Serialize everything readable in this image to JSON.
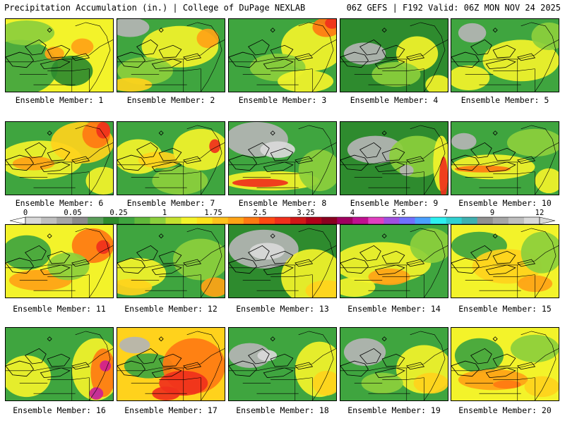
{
  "header": {
    "title": "Precipitation Accumulation (in.) | College of DuPage NEXLAB",
    "run_info": "06Z GEFS | F192 Valid: 06Z MON NOV 24 2025"
  },
  "colors": {
    "none": "#ffffff",
    "lightgray": "#d9d9d9",
    "gray": "#b4b4b4",
    "darkgray": "#8f8f8f",
    "darkgreen": "#2e8b2e",
    "green": "#3fa53f",
    "lightgreen": "#8ccf3c",
    "yellowgreen": "#c5e22e",
    "yellow": "#f3f32a",
    "gold": "#ffd21c",
    "orange": "#ffa316",
    "darkorange": "#ff7a12",
    "red": "#f0301c",
    "crimson": "#c0001a",
    "magenta": "#d02090",
    "violet": "#a050e0",
    "cyan": "#2cf0f0",
    "water": "#f3f32a"
  },
  "colorbar": {
    "labels": [
      "0",
      "0.05",
      "0.25",
      "1",
      "1.75",
      "2.5",
      "3.25",
      "4",
      "5.5",
      "7",
      "9",
      "12"
    ],
    "swatches": [
      "#d9d9d9",
      "#bfbfbf",
      "#a6a6a6",
      "#8c8c8c",
      "#5a9e5a",
      "#2e8b2e",
      "#3fa53f",
      "#60b83a",
      "#8ccf3c",
      "#c5e22e",
      "#f3f32a",
      "#ffe21c",
      "#ffc21c",
      "#ffa316",
      "#ff7a12",
      "#ff4a12",
      "#f0301c",
      "#d01818",
      "#b0001a",
      "#8a0020",
      "#a00060",
      "#c01090",
      "#e040c0",
      "#a050e0",
      "#7070ff",
      "#4aa0ff",
      "#2cf0f0",
      "#30d0d0",
      "#40b0b0",
      "#909090",
      "#a6a6a6",
      "#bfbfbf",
      "#d9d9d9"
    ]
  },
  "members": [
    {
      "label": "Ensemble Member: 1",
      "base": "#f3f32a",
      "blobs": [
        {
          "c": "#3fa53f",
          "p": [
            20,
            70,
            55,
            40
          ]
        },
        {
          "c": "#2e8b2e",
          "p": [
            95,
            75,
            30,
            22
          ]
        },
        {
          "c": "#ffa316",
          "p": [
            110,
            40,
            16,
            12
          ]
        },
        {
          "c": "#ffa316",
          "p": [
            70,
            50,
            14,
            10
          ]
        },
        {
          "c": "#8ccf3c",
          "p": [
            30,
            20,
            40,
            18
          ]
        }
      ]
    },
    {
      "label": "Ensemble Member: 2",
      "base": "#3fa53f",
      "blobs": [
        {
          "c": "#b4b4b4",
          "p": [
            18,
            12,
            28,
            14
          ]
        },
        {
          "c": "#f3f32a",
          "p": [
            90,
            40,
            55,
            30
          ]
        },
        {
          "c": "#ffa316",
          "p": [
            130,
            28,
            16,
            14
          ]
        },
        {
          "c": "#8ccf3c",
          "p": [
            40,
            75,
            40,
            20
          ]
        },
        {
          "c": "#ffd21c",
          "p": [
            20,
            95,
            30,
            10
          ]
        }
      ]
    },
    {
      "label": "Ensemble Member: 3",
      "base": "#3fa53f",
      "blobs": [
        {
          "c": "#f3f32a",
          "p": [
            120,
            40,
            45,
            35
          ]
        },
        {
          "c": "#ff7a12",
          "p": [
            140,
            12,
            20,
            14
          ]
        },
        {
          "c": "#f0301c",
          "p": [
            148,
            6,
            10,
            8
          ]
        },
        {
          "c": "#8ccf3c",
          "p": [
            70,
            70,
            40,
            20
          ]
        },
        {
          "c": "#f3f32a",
          "p": [
            110,
            90,
            40,
            16
          ]
        }
      ]
    },
    {
      "label": "Ensemble Member: 4",
      "base": "#2e8b2e",
      "blobs": [
        {
          "c": "#b4b4b4",
          "p": [
            35,
            50,
            30,
            16
          ]
        },
        {
          "c": "#f3f32a",
          "p": [
            110,
            50,
            30,
            25
          ]
        },
        {
          "c": "#f3f32a",
          "p": [
            140,
            95,
            18,
            14
          ]
        },
        {
          "c": "#8ccf3c",
          "p": [
            80,
            80,
            35,
            18
          ]
        }
      ]
    },
    {
      "label": "Ensemble Member: 5",
      "base": "#3fa53f",
      "blobs": [
        {
          "c": "#b4b4b4",
          "p": [
            30,
            20,
            20,
            14
          ]
        },
        {
          "c": "#f3f32a",
          "p": [
            100,
            60,
            55,
            30
          ]
        },
        {
          "c": "#f3f32a",
          "p": [
            25,
            85,
            30,
            18
          ]
        },
        {
          "c": "#8ccf3c",
          "p": [
            140,
            25,
            25,
            20
          ]
        }
      ]
    },
    {
      "label": "Ensemble Member: 6",
      "base": "#3fa53f",
      "blobs": [
        {
          "c": "#f3f32a",
          "p": [
            50,
            55,
            60,
            28
          ]
        },
        {
          "c": "#ffd21c",
          "p": [
            110,
            30,
            45,
            30
          ]
        },
        {
          "c": "#ff7a12",
          "p": [
            130,
            18,
            20,
            20
          ]
        },
        {
          "c": "#f0301c",
          "p": [
            140,
            12,
            10,
            12
          ]
        },
        {
          "c": "#ffa316",
          "p": [
            40,
            60,
            30,
            10
          ]
        },
        {
          "c": "#f3f32a",
          "p": [
            140,
            85,
            25,
            20
          ]
        }
      ]
    },
    {
      "label": "Ensemble Member: 7",
      "base": "#3fa53f",
      "blobs": [
        {
          "c": "#f3f32a",
          "p": [
            30,
            50,
            35,
            25
          ]
        },
        {
          "c": "#ffd21c",
          "p": [
            60,
            55,
            30,
            12
          ]
        },
        {
          "c": "#f3f32a",
          "p": [
            120,
            40,
            40,
            30
          ]
        },
        {
          "c": "#f0301c",
          "p": [
            140,
            35,
            8,
            10
          ]
        },
        {
          "c": "#8ccf3c",
          "p": [
            90,
            85,
            40,
            20
          ]
        }
      ]
    },
    {
      "label": "Ensemble Member: 8",
      "base": "#3fa53f",
      "blobs": [
        {
          "c": "#b4b4b4",
          "p": [
            40,
            25,
            45,
            25
          ]
        },
        {
          "c": "#d9d9d9",
          "p": [
            70,
            40,
            25,
            12
          ]
        },
        {
          "c": "#f3f32a",
          "p": [
            60,
            85,
            70,
            14
          ]
        },
        {
          "c": "#f0301c",
          "p": [
            45,
            88,
            40,
            6
          ]
        },
        {
          "c": "#8ccf3c",
          "p": [
            130,
            70,
            30,
            30
          ]
        }
      ]
    },
    {
      "label": "Ensemble Member: 9",
      "base": "#2e8b2e",
      "blobs": [
        {
          "c": "#b4b4b4",
          "p": [
            50,
            40,
            40,
            20
          ]
        },
        {
          "c": "#8ccf3c",
          "p": [
            110,
            50,
            40,
            30
          ]
        },
        {
          "c": "#f3f32a",
          "p": [
            145,
            60,
            12,
            40
          ]
        },
        {
          "c": "#f0301c",
          "p": [
            148,
            80,
            6,
            30
          ]
        },
        {
          "c": "#b4b4b4",
          "p": [
            95,
            70,
            10,
            8
          ]
        }
      ]
    },
    {
      "label": "Ensemble Member: 10",
      "base": "#3fa53f",
      "blobs": [
        {
          "c": "#b4b4b4",
          "p": [
            18,
            28,
            18,
            12
          ]
        },
        {
          "c": "#f3f32a",
          "p": [
            60,
            65,
            60,
            18
          ]
        },
        {
          "c": "#ff7a12",
          "p": [
            45,
            68,
            40,
            5
          ]
        },
        {
          "c": "#8ccf3c",
          "p": [
            120,
            30,
            40,
            20
          ]
        },
        {
          "c": "#f3f32a",
          "p": [
            140,
            85,
            20,
            18
          ]
        }
      ]
    },
    {
      "label": "Ensemble Member: 11",
      "base": "#f3f32a",
      "blobs": [
        {
          "c": "#3fa53f",
          "p": [
            30,
            40,
            35,
            25
          ]
        },
        {
          "c": "#ff7a12",
          "p": [
            125,
            30,
            30,
            25
          ]
        },
        {
          "c": "#f0301c",
          "p": [
            140,
            32,
            10,
            10
          ]
        },
        {
          "c": "#ffa316",
          "p": [
            50,
            80,
            45,
            15
          ]
        },
        {
          "c": "#8ccf3c",
          "p": [
            90,
            60,
            30,
            20
          ]
        }
      ]
    },
    {
      "label": "Ensemble Member: 12",
      "base": "#3fa53f",
      "blobs": [
        {
          "c": "#f3f32a",
          "p": [
            30,
            70,
            40,
            22
          ]
        },
        {
          "c": "#ffd21c",
          "p": [
            20,
            90,
            30,
            12
          ]
        },
        {
          "c": "#8ccf3c",
          "p": [
            120,
            50,
            40,
            30
          ]
        },
        {
          "c": "#ffa316",
          "p": [
            140,
            90,
            20,
            14
          ]
        }
      ]
    },
    {
      "label": "Ensemble Member: 13",
      "base": "#2e8b2e",
      "blobs": [
        {
          "c": "#b4b4b4",
          "p": [
            50,
            35,
            50,
            28
          ]
        },
        {
          "c": "#d9d9d9",
          "p": [
            55,
            38,
            25,
            12
          ]
        },
        {
          "c": "#f3f32a",
          "p": [
            120,
            75,
            45,
            40
          ]
        },
        {
          "c": "#ffd21c",
          "p": [
            140,
            95,
            30,
            15
          ]
        }
      ]
    },
    {
      "label": "Ensemble Member: 14",
      "base": "#3fa53f",
      "blobs": [
        {
          "c": "#f3f32a",
          "p": [
            60,
            55,
            70,
            30
          ]
        },
        {
          "c": "#ffa316",
          "p": [
            70,
            75,
            30,
            12
          ]
        },
        {
          "c": "#8ccf3c",
          "p": [
            130,
            30,
            30,
            25
          ]
        },
        {
          "c": "#f3f32a",
          "p": [
            20,
            90,
            30,
            14
          ]
        }
      ]
    },
    {
      "label": "Ensemble Member: 15",
      "base": "#f3f32a",
      "blobs": [
        {
          "c": "#3fa53f",
          "p": [
            40,
            30,
            40,
            20
          ]
        },
        {
          "c": "#ffd21c",
          "p": [
            80,
            60,
            50,
            25
          ]
        },
        {
          "c": "#8ccf3c",
          "p": [
            130,
            40,
            30,
            30
          ]
        },
        {
          "c": "#ffa316",
          "p": [
            120,
            85,
            25,
            12
          ]
        }
      ]
    },
    {
      "label": "Ensemble Member: 16",
      "base": "#3fa53f",
      "blobs": [
        {
          "c": "#f3f32a",
          "p": [
            30,
            70,
            35,
            30
          ]
        },
        {
          "c": "#f3f32a",
          "p": [
            130,
            60,
            35,
            45
          ]
        },
        {
          "c": "#ff7a12",
          "p": [
            140,
            65,
            18,
            35
          ]
        },
        {
          "c": "#d02090",
          "p": [
            143,
            55,
            8,
            8
          ]
        },
        {
          "c": "#2cf0f0",
          "p": [
            130,
            95,
            6,
            6
          ]
        },
        {
          "c": "#d02090",
          "p": [
            130,
            95,
            10,
            9
          ]
        }
      ]
    },
    {
      "label": "Ensemble Member: 17",
      "base": "#ffd21c",
      "blobs": [
        {
          "c": "#b4b4b4",
          "p": [
            25,
            25,
            22,
            12
          ]
        },
        {
          "c": "#3fa53f",
          "p": [
            45,
            55,
            35,
            18
          ]
        },
        {
          "c": "#ff7a12",
          "p": [
            110,
            55,
            45,
            40
          ]
        },
        {
          "c": "#f0301c",
          "p": [
            95,
            80,
            35,
            18
          ]
        },
        {
          "c": "#f0301c",
          "p": [
            70,
            95,
            20,
            10
          ]
        }
      ]
    },
    {
      "label": "Ensemble Member: 18",
      "base": "#3fa53f",
      "blobs": [
        {
          "c": "#b4b4b4",
          "p": [
            30,
            40,
            30,
            18
          ]
        },
        {
          "c": "#d9d9d9",
          "p": [
            55,
            40,
            14,
            8
          ]
        },
        {
          "c": "#f3f32a",
          "p": [
            130,
            60,
            35,
            40
          ]
        },
        {
          "c": "#ffd21c",
          "p": [
            140,
            80,
            20,
            18
          ]
        }
      ]
    },
    {
      "label": "Ensemble Member: 19",
      "base": "#3fa53f",
      "blobs": [
        {
          "c": "#b4b4b4",
          "p": [
            35,
            35,
            30,
            20
          ]
        },
        {
          "c": "#f3f32a",
          "p": [
            120,
            60,
            40,
            35
          ]
        },
        {
          "c": "#ffd21c",
          "p": [
            130,
            80,
            25,
            15
          ]
        },
        {
          "c": "#8ccf3c",
          "p": [
            60,
            80,
            30,
            15
          ]
        }
      ]
    },
    {
      "label": "Ensemble Member: 20",
      "base": "#f3f32a",
      "blobs": [
        {
          "c": "#3fa53f",
          "p": [
            40,
            40,
            35,
            25
          ]
        },
        {
          "c": "#ffa316",
          "p": [
            60,
            75,
            50,
            15
          ]
        },
        {
          "c": "#ff7a12",
          "p": [
            80,
            82,
            20,
            6
          ]
        },
        {
          "c": "#8ccf3c",
          "p": [
            120,
            30,
            35,
            20
          ]
        },
        {
          "c": "#ffd21c",
          "p": [
            130,
            85,
            25,
            15
          ]
        }
      ]
    }
  ]
}
